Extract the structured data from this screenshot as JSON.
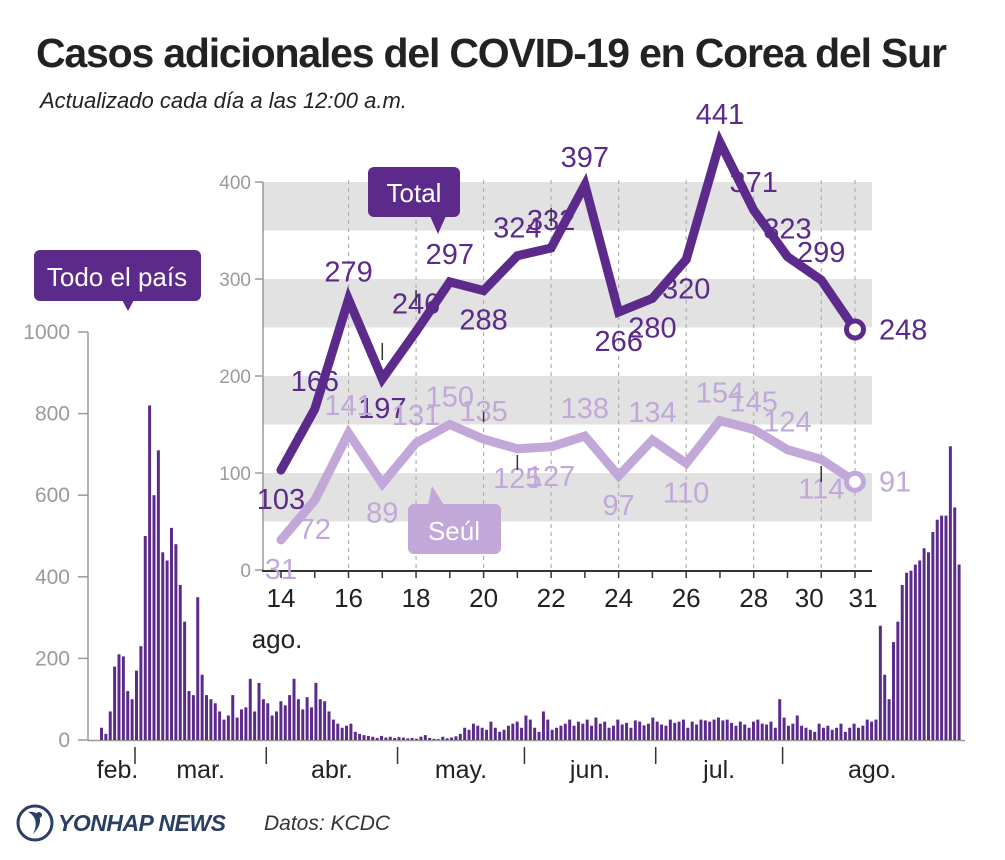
{
  "title": "Casos adicionales del COVID-19 en Corea del Sur",
  "subtitle": "Actualizado cada día a las 12:00 a.m.",
  "footer": {
    "brand": "YONHAP NEWS",
    "source": "Datos: KCDC"
  },
  "colors": {
    "total": "#5c2a8a",
    "seoul": "#c2a8d9",
    "bars": "#5c2a8a",
    "band": "#e2e2e2",
    "axis": "#9a9a9a",
    "text": "#222222",
    "brand": "#2b3e63"
  },
  "chart_data": [
    {
      "type": "bar",
      "label": "Todo el país",
      "ylim": [
        0,
        1000
      ],
      "yticks": [
        0,
        200,
        400,
        600,
        800,
        1000
      ],
      "month_labels": [
        "feb.",
        "mar.",
        "abr.",
        "may.",
        "jun.",
        "jul.",
        "ago."
      ],
      "values": [
        30,
        15,
        70,
        180,
        210,
        205,
        120,
        100,
        170,
        230,
        500,
        820,
        600,
        710,
        460,
        440,
        520,
        480,
        380,
        290,
        120,
        110,
        350,
        160,
        110,
        100,
        90,
        70,
        50,
        60,
        110,
        55,
        75,
        80,
        150,
        70,
        140,
        100,
        90,
        60,
        70,
        95,
        85,
        110,
        150,
        100,
        75,
        105,
        80,
        140,
        100,
        95,
        70,
        50,
        40,
        30,
        35,
        40,
        20,
        15,
        12,
        10,
        8,
        5,
        10,
        6,
        8,
        5,
        7,
        6,
        4,
        5,
        3,
        8,
        12,
        5,
        3,
        2,
        8,
        4,
        6,
        9,
        15,
        30,
        25,
        40,
        35,
        30,
        25,
        45,
        30,
        20,
        25,
        35,
        40,
        45,
        30,
        60,
        50,
        30,
        20,
        70,
        50,
        25,
        30,
        35,
        40,
        50,
        35,
        45,
        40,
        50,
        35,
        55,
        40,
        45,
        30,
        35,
        50,
        38,
        42,
        30,
        48,
        45,
        36,
        40,
        55,
        45,
        38,
        35,
        50,
        42,
        45,
        50,
        30,
        45,
        38,
        50,
        48,
        45,
        50,
        55,
        48,
        50,
        42,
        35,
        45,
        38,
        30,
        45,
        50,
        40,
        38,
        45,
        30,
        100,
        55,
        35,
        40,
        60,
        35,
        30,
        25,
        20,
        40,
        30,
        35,
        25,
        30,
        40,
        20,
        30,
        40,
        30,
        35,
        50,
        45,
        50,
        280,
        160,
        100,
        240,
        290,
        380,
        410,
        415,
        430,
        440,
        470,
        460,
        510,
        540,
        550,
        550,
        720,
        570,
        430
      ]
    },
    {
      "type": "line",
      "ylim": [
        0,
        450
      ],
      "yticks": [
        0,
        100,
        200,
        300,
        400
      ],
      "x": [
        14,
        15,
        16,
        17,
        18,
        19,
        20,
        21,
        22,
        23,
        24,
        25,
        26,
        27,
        28,
        29,
        30,
        31
      ],
      "xtick_labels": [
        "14",
        "16",
        "18",
        "20",
        "22",
        "24",
        "26",
        "28",
        "30",
        "31"
      ],
      "xlabel": "ago.",
      "series": [
        {
          "name": "Total",
          "values": [
            103,
            166,
            279,
            197,
            246,
            297,
            288,
            324,
            332,
            397,
            266,
            280,
            320,
            441,
            371,
            323,
            299,
            248
          ]
        },
        {
          "name": "Seúl",
          "values": [
            31,
            72,
            141,
            89,
            131,
            150,
            135,
            125,
            127,
            138,
            97,
            134,
            110,
            154,
            145,
            124,
            114,
            91
          ]
        }
      ]
    }
  ]
}
